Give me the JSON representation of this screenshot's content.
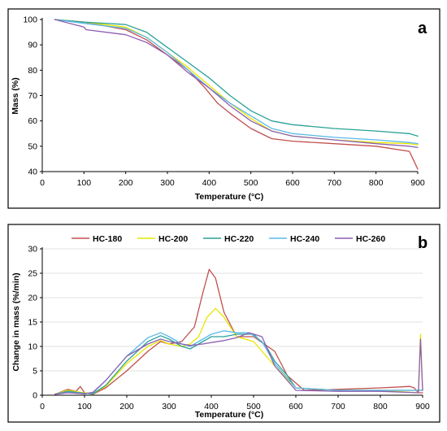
{
  "colors": {
    "HC-180": "#c0504d",
    "HC-200": "#e6e600",
    "HC-220": "#2aa197",
    "HC-240": "#5bb8e8",
    "HC-260": "#8e5fb0"
  },
  "chart_data": [
    {
      "type": "line",
      "panel_label": "a",
      "xlabel": "Temperature (°C)",
      "ylabel": "Mass (%)",
      "xlim": [
        0,
        900
      ],
      "ylim": [
        40,
        100
      ],
      "xticks": [
        "0",
        "100",
        "200",
        "300",
        "400",
        "500",
        "600",
        "700",
        "800",
        "900"
      ],
      "yticks": [
        "40",
        "50",
        "60",
        "70",
        "80",
        "90",
        "100"
      ],
      "grid": false,
      "legend": "none",
      "series": [
        {
          "name": "HC-180",
          "x": [
            30,
            100,
            200,
            250,
            300,
            350,
            390,
            420,
            450,
            500,
            550,
            600,
            700,
            800,
            880,
            900
          ],
          "y": [
            100,
            99,
            96,
            92,
            86,
            80,
            73,
            67,
            63,
            57,
            53,
            52,
            51,
            50,
            48,
            41
          ]
        },
        {
          "name": "HC-200",
          "x": [
            30,
            100,
            200,
            250,
            300,
            350,
            400,
            450,
            500,
            550,
            600,
            700,
            800,
            880,
            900
          ],
          "y": [
            100,
            99,
            97,
            93,
            87,
            81,
            74,
            67,
            61,
            56,
            54,
            52.5,
            51.5,
            51,
            50.5
          ]
        },
        {
          "name": "HC-220",
          "x": [
            30,
            100,
            200,
            250,
            300,
            350,
            400,
            450,
            500,
            550,
            600,
            700,
            800,
            880,
            900
          ],
          "y": [
            100,
            99,
            98,
            95,
            89,
            83,
            77,
            70,
            64,
            60,
            58.5,
            57,
            56,
            55,
            54
          ]
        },
        {
          "name": "HC-240",
          "x": [
            30,
            100,
            200,
            250,
            300,
            350,
            400,
            450,
            500,
            550,
            600,
            700,
            800,
            880,
            900
          ],
          "y": [
            100,
            98.5,
            96.5,
            93,
            87,
            80,
            73,
            67,
            62,
            57,
            55,
            53.5,
            52.5,
            51.5,
            51
          ]
        },
        {
          "name": "HC-260",
          "x": [
            30,
            100,
            105,
            200,
            250,
            300,
            350,
            400,
            450,
            500,
            550,
            600,
            700,
            800,
            880,
            900
          ],
          "y": [
            100,
            97,
            96,
            94,
            91,
            86,
            79,
            73,
            66,
            60,
            56,
            54,
            52.5,
            51,
            50,
            49.5
          ]
        }
      ]
    },
    {
      "type": "line",
      "panel_label": "b",
      "xlabel": "Temperature (°C)",
      "ylabel": "Change in mass (%/min)",
      "xlim": [
        0,
        900
      ],
      "ylim": [
        0,
        30
      ],
      "xticks": [
        "0",
        "100",
        "200",
        "300",
        "400",
        "500",
        "600",
        "700",
        "800",
        "900"
      ],
      "yticks": [
        "0",
        "5",
        "10",
        "15",
        "20",
        "25",
        "30"
      ],
      "grid": true,
      "legend": "top-center",
      "series": [
        {
          "name": "HC-180",
          "x": [
            30,
            60,
            80,
            90,
            100,
            120,
            150,
            200,
            250,
            280,
            300,
            330,
            360,
            380,
            395,
            410,
            430,
            460,
            500,
            550,
            580,
            620,
            700,
            800,
            870,
            880,
            890,
            900
          ],
          "y": [
            0.2,
            1.2,
            0.8,
            1.8,
            0.5,
            0.2,
            1.5,
            5,
            9,
            11,
            10.5,
            11,
            14,
            21,
            25.8,
            24,
            17,
            12,
            12,
            9,
            4,
            1,
            1.2,
            1.5,
            1.8,
            1.5,
            0.5,
            0.5
          ]
        },
        {
          "name": "HC-200",
          "x": [
            30,
            60,
            100,
            120,
            150,
            200,
            250,
            280,
            300,
            330,
            350,
            370,
            390,
            410,
            430,
            460,
            500,
            550,
            600,
            700,
            800,
            890,
            895,
            900
          ],
          "y": [
            0.2,
            1,
            0.5,
            0.3,
            1.8,
            6.5,
            10,
            11.2,
            10.5,
            10,
            10.5,
            12,
            16,
            17.8,
            16,
            12,
            11,
            6,
            1.5,
            1,
            1,
            0.5,
            12.5,
            1
          ]
        },
        {
          "name": "HC-220",
          "x": [
            30,
            60,
            100,
            120,
            150,
            200,
            250,
            280,
            300,
            330,
            350,
            380,
            400,
            430,
            460,
            500,
            530,
            550,
            580,
            600,
            700,
            800,
            900
          ],
          "y": [
            0.2,
            0.8,
            0.4,
            0.3,
            2,
            7,
            11,
            12.2,
            11.5,
            10,
            9.5,
            11,
            12,
            12,
            12.5,
            12.5,
            10,
            7,
            4,
            1.5,
            1,
            1,
            1
          ]
        },
        {
          "name": "HC-240",
          "x": [
            30,
            60,
            100,
            120,
            150,
            200,
            250,
            280,
            300,
            330,
            350,
            380,
            400,
            430,
            460,
            490,
            520,
            550,
            580,
            600,
            700,
            800,
            900
          ],
          "y": [
            0.2,
            0.6,
            0.3,
            0.5,
            3,
            8,
            11.8,
            12.8,
            12,
            10.5,
            10,
            11.5,
            12.5,
            13.2,
            12.8,
            12.8,
            11,
            6.5,
            3.5,
            1.5,
            1,
            1,
            1
          ]
        },
        {
          "name": "HC-260",
          "x": [
            30,
            60,
            100,
            120,
            150,
            200,
            250,
            280,
            300,
            330,
            350,
            380,
            400,
            430,
            460,
            490,
            520,
            550,
            580,
            600,
            700,
            800,
            890,
            895,
            900
          ],
          "y": [
            0.2,
            0.5,
            0.3,
            0.6,
            3,
            8,
            10.5,
            11.5,
            11,
            10.5,
            10.2,
            10.5,
            10.8,
            11.2,
            11.8,
            12.8,
            12,
            6,
            3,
            1,
            0.8,
            0.8,
            0.5,
            11.5,
            1
          ]
        }
      ]
    }
  ]
}
